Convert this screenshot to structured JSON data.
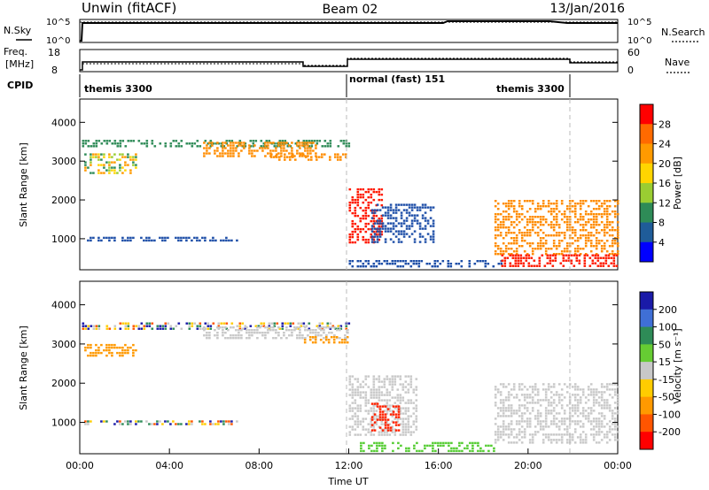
{
  "header": {
    "site_title": "Unwin (fitACF)",
    "beam_title": "Beam 02",
    "date": "13/Jan/2016"
  },
  "noise_panel": {
    "left_label": "N.Sky",
    "right_label": "N.Search",
    "tick_top": "10^5",
    "tick_bottom": "10^0"
  },
  "freq_panel": {
    "left_label_1": "Freq.",
    "left_label_2": "[MHz]",
    "right_label": "Nave",
    "left_tick_top": "18",
    "left_tick_bottom": "8",
    "right_tick_top": "60",
    "right_tick_bottom": "0"
  },
  "cpid": {
    "label": "CPID",
    "segments": [
      {
        "name": "themis 3300",
        "start_hour": 0,
        "end_hour": 12
      },
      {
        "name": "normal (fast) 151",
        "start_hour": 12,
        "end_hour": 22
      },
      {
        "name": "themis 3300",
        "start_hour": 22,
        "end_hour": 24
      }
    ]
  },
  "x_axis": {
    "title": "Time UT",
    "ticks": [
      "00:00",
      "04:00",
      "08:00",
      "12:00",
      "16:00",
      "20:00",
      "00:00"
    ],
    "tick_hours": [
      0,
      4,
      8,
      12,
      16,
      20,
      24
    ]
  },
  "power_colorbar": {
    "label": "Power [dB]",
    "ticks": [
      "28",
      "24",
      "20",
      "16",
      "12",
      "8",
      "4"
    ],
    "colors": [
      "#ff0000",
      "#ff6a00",
      "#ff9a00",
      "#ffd500",
      "#9acd32",
      "#2e8b57",
      "#1f5c99",
      "#0000ff"
    ]
  },
  "velocity_colorbar": {
    "label": "Velocity [m s⁻¹]",
    "ticks": [
      "200",
      "100",
      "50",
      "15",
      "-15",
      "-50",
      "-100",
      "-200"
    ],
    "colors": [
      "#1a1aa8",
      "#3f6fd6",
      "#2e8b57",
      "#66cc33",
      "#c8c8c8",
      "#ffcc00",
      "#ff9900",
      "#ff5500",
      "#ff0000"
    ]
  },
  "chart_data": [
    {
      "type": "heatmap",
      "name": "power",
      "xlabel": "",
      "ylabel": "Slant Range [km]",
      "xlim": [
        0,
        24
      ],
      "ylim": [
        200,
        4600
      ],
      "yticks": [
        1000,
        2000,
        3000,
        4000
      ],
      "regions": [
        {
          "t0": 0.1,
          "t1": 12.0,
          "r0": 3400,
          "r1": 3550,
          "level": "green"
        },
        {
          "t0": 5.5,
          "t1": 10.5,
          "r0": 3150,
          "r1": 3500,
          "level": "orange"
        },
        {
          "t0": 8.5,
          "t1": 12.0,
          "r0": 3050,
          "r1": 3200,
          "level": "orange"
        },
        {
          "t0": 0.2,
          "t1": 2.5,
          "r0": 2700,
          "r1": 3200,
          "level": "mixed"
        },
        {
          "t0": 0.2,
          "t1": 7.0,
          "r0": 950,
          "r1": 1050,
          "level": "blue"
        },
        {
          "t0": 12.0,
          "t1": 13.5,
          "r0": 900,
          "r1": 2300,
          "level": "red"
        },
        {
          "t0": 13.0,
          "t1": 15.8,
          "r0": 900,
          "r1": 1900,
          "level": "blue"
        },
        {
          "t0": 12.0,
          "t1": 18.8,
          "r0": 300,
          "r1": 450,
          "level": "blue"
        },
        {
          "t0": 18.5,
          "t1": 24.0,
          "r0": 600,
          "r1": 2000,
          "level": "orange"
        },
        {
          "t0": 18.8,
          "t1": 24.0,
          "r0": 300,
          "r1": 600,
          "level": "red"
        }
      ]
    },
    {
      "type": "heatmap",
      "name": "velocity",
      "xlabel": "Time UT",
      "ylabel": "Slant Range [km]",
      "xlim": [
        0,
        24
      ],
      "ylim": [
        200,
        4600
      ],
      "yticks": [
        1000,
        2000,
        3000,
        4000
      ],
      "regions": [
        {
          "t0": 0.1,
          "t1": 12.0,
          "r0": 3400,
          "r1": 3550,
          "level": "mixed"
        },
        {
          "t0": 5.5,
          "t1": 12.0,
          "r0": 3150,
          "r1": 3450,
          "level": "gray"
        },
        {
          "t0": 10.0,
          "t1": 12.0,
          "r0": 3050,
          "r1": 3200,
          "level": "orange"
        },
        {
          "t0": 0.2,
          "t1": 2.5,
          "r0": 2700,
          "r1": 3000,
          "level": "orange"
        },
        {
          "t0": 0.2,
          "t1": 7.0,
          "r0": 950,
          "r1": 1050,
          "level": "mixed"
        },
        {
          "t0": 12.0,
          "t1": 15.0,
          "r0": 700,
          "r1": 2200,
          "level": "gray"
        },
        {
          "t0": 13.0,
          "t1": 14.3,
          "r0": 800,
          "r1": 1500,
          "level": "red"
        },
        {
          "t0": 12.5,
          "t1": 18.5,
          "r0": 250,
          "r1": 500,
          "level": "green"
        },
        {
          "t0": 18.5,
          "t1": 24.0,
          "r0": 500,
          "r1": 2000,
          "level": "gray"
        }
      ]
    },
    {
      "type": "line",
      "name": "noise",
      "series": [
        {
          "name": "N.Sky",
          "x": [
            0,
            0.15,
            0.2,
            24
          ],
          "y": [
            0,
            0,
            5,
            5
          ]
        },
        {
          "name": "N.Search",
          "x": [
            0,
            24
          ],
          "y": [
            5,
            5
          ]
        }
      ]
    },
    {
      "type": "line",
      "name": "frequency",
      "series": [
        {
          "name": "Freq.",
          "x": [
            0,
            0.2,
            10,
            12,
            22,
            24
          ],
          "y": [
            12,
            12,
            10,
            13,
            11,
            11
          ]
        },
        {
          "name": "Nave",
          "x": [
            0,
            10,
            12,
            22,
            24
          ],
          "y": [
            20,
            18,
            30,
            18,
            18
          ]
        }
      ]
    }
  ]
}
